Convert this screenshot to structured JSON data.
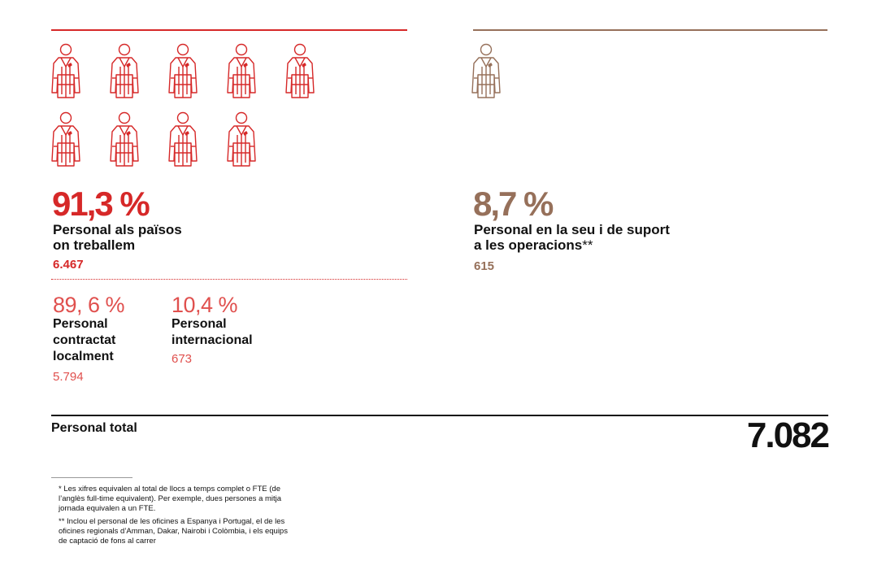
{
  "colors": {
    "red": "#d62828",
    "brown": "#96705a",
    "light_red": "#e0504e",
    "black": "#111111"
  },
  "icon": "person-jacket-icon",
  "chart_data": {
    "type": "pictogram",
    "series": [
      {
        "icons": 9,
        "percent": "91,3 %",
        "label_line1": "Personal als països",
        "label_line2": "on treballem",
        "count": "6.467",
        "sub": [
          {
            "percent": "89, 6 %",
            "lines": [
              "Personal",
              "contractat",
              "localment"
            ],
            "count": "5.794"
          },
          {
            "percent": "10,4 %",
            "lines": [
              "Personal",
              "internacional"
            ],
            "count": "673"
          }
        ]
      },
      {
        "icons": 1,
        "percent": "8,7 %",
        "label_line1": "Personal en la seu i de suport",
        "label_line2": "a les operacions",
        "label_suffix": "**",
        "count": "615"
      }
    ],
    "total_label": "Personal total",
    "total_value": "7.082"
  },
  "footnotes": [
    [
      "* Les xifres equivalen al total de llocs a temps complet o FTE (de",
      "l’anglès full-time equivalent). Per exemple, dues persones a mitja",
      "jornada equivalen a un FTE."
    ],
    [
      "** Inclou el personal de les oficines a Espanya i Portugal, el de les",
      "oficines regionals d’Amman, Dakar, Nairobi i Colòmbia, i els equips",
      "de captació de fons al carrer"
    ]
  ]
}
